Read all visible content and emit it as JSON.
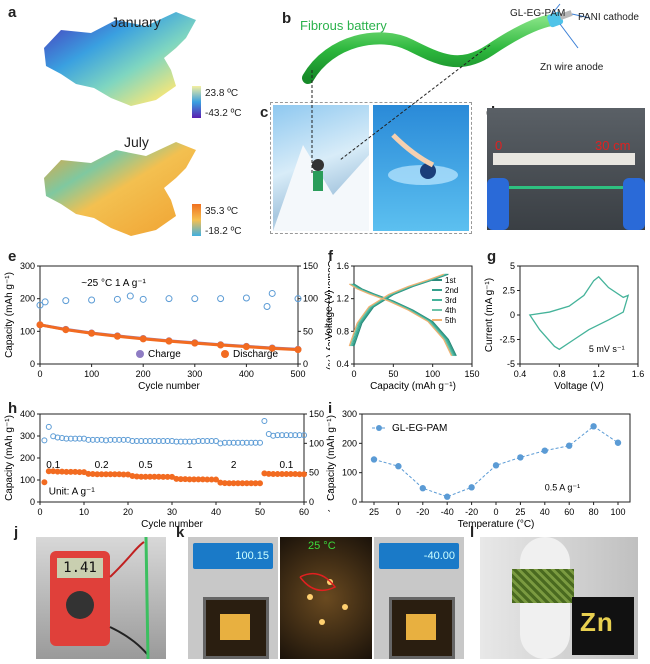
{
  "panel_labels": {
    "a": "a",
    "b": "b",
    "c": "c",
    "d": "d",
    "e": "e",
    "f": "f",
    "g": "g",
    "h": "h",
    "i": "i",
    "j": "j",
    "k": "k",
    "l": "l"
  },
  "panel_a": {
    "january": {
      "title": "January",
      "max_label": "23.8 ºC",
      "min_label": "-43.2 ºC"
    },
    "july": {
      "title": "July",
      "max_label": "35.3 ºC",
      "min_label": "-18.2 ºC"
    }
  },
  "panel_b": {
    "title": "Fibrous battery",
    "label_electrolyte": "GL-EG-PAM",
    "label_cathode": "PANI cathode",
    "label_anode": "Zn wire anode"
  },
  "panel_d": {
    "start_label": "0",
    "end_label": "30 cm"
  },
  "panel_j": {
    "meter_reading": "1.41"
  },
  "panel_k": {
    "left_display": "100.15",
    "center_label": "25 °C",
    "right_display": "-40.00"
  },
  "panel_l": {
    "text": "Zn"
  },
  "chart_data": [
    {
      "id": "e",
      "type": "scatter",
      "xlabel": "Cycle number",
      "ylabel": "Capacity (mAh g⁻¹)",
      "y2label": "Coulombic efficiency (%)",
      "xlim": [
        0,
        500
      ],
      "ylim": [
        0,
        300
      ],
      "y2lim": [
        0,
        150
      ],
      "xticks": [
        0,
        100,
        200,
        300,
        400,
        500
      ],
      "yticks": [
        0,
        100,
        200,
        300
      ],
      "y2ticks": [
        0,
        50,
        100,
        150
      ],
      "annotation": "~25 °C     1 A g⁻¹",
      "legend_location": "bottom-center",
      "series": [
        {
          "name": "Charge",
          "color": "#8e7cc3",
          "x": [
            0,
            50,
            100,
            150,
            200,
            250,
            300,
            350,
            400,
            450,
            500
          ],
          "y": [
            120,
            106,
            95,
            86,
            78,
            71,
            65,
            59,
            54,
            49,
            45
          ]
        },
        {
          "name": "Discharge",
          "color": "#f26b21",
          "x": [
            0,
            50,
            100,
            150,
            200,
            250,
            300,
            350,
            400,
            450,
            500
          ],
          "y": [
            120,
            105,
            94,
            85,
            77,
            70,
            64,
            58,
            53,
            48,
            44
          ]
        },
        {
          "name": "",
          "color": "#5b9bd5",
          "axis": "right",
          "x": [
            0,
            10,
            50,
            100,
            150,
            175,
            200,
            250,
            300,
            350,
            400,
            440,
            450,
            500
          ],
          "y": [
            90,
            95,
            97,
            98,
            99,
            104,
            99,
            100,
            100,
            100,
            101,
            88,
            108,
            100
          ]
        }
      ]
    },
    {
      "id": "f",
      "type": "line",
      "xlabel": "Capacity (mAh g⁻¹)",
      "ylabel": "Voltage (V)",
      "xlim": [
        0,
        150
      ],
      "ylim": [
        0.4,
        1.6
      ],
      "xticks": [
        0,
        50,
        100,
        150
      ],
      "yticks": [
        0.4,
        0.8,
        1.2,
        1.6
      ],
      "legend_location": "right",
      "series": [
        {
          "name": "1st",
          "color": "#2a8a7a"
        },
        {
          "name": "2nd",
          "color": "#34a08c"
        },
        {
          "name": "3rd",
          "color": "#45b39a"
        },
        {
          "name": "4th",
          "color": "#6cc3a8"
        },
        {
          "name": "5th",
          "color": "#f0b070"
        }
      ],
      "charge_curve": {
        "x": [
          0,
          10,
          25,
          50,
          75,
          100,
          120
        ],
        "y": [
          0.62,
          0.9,
          1.1,
          1.25,
          1.35,
          1.43,
          1.5
        ]
      },
      "discharge_curve": {
        "x": [
          0,
          10,
          25,
          50,
          75,
          100,
          120,
          130
        ],
        "y": [
          1.38,
          1.32,
          1.26,
          1.17,
          1.06,
          0.92,
          0.7,
          0.5
        ]
      }
    },
    {
      "id": "g",
      "type": "line",
      "xlabel": "Voltage (V)",
      "ylabel": "Current (mA g⁻¹)",
      "xlim": [
        0.4,
        1.6
      ],
      "ylim": [
        -5,
        5
      ],
      "xticks": [
        0.4,
        0.8,
        1.2,
        1.6
      ],
      "yticks": [
        -5,
        -2.5,
        0,
        2.5,
        5
      ],
      "annotation": "5 mV s⁻¹",
      "curve": {
        "x": [
          0.5,
          0.7,
          0.9,
          1.05,
          1.15,
          1.2,
          1.3,
          1.45,
          1.5,
          1.45,
          1.3,
          1.1,
          0.95,
          0.8,
          0.75,
          0.6,
          0.5
        ],
        "y": [
          0.0,
          0.3,
          0.9,
          2.0,
          3.5,
          3.9,
          2.8,
          1.8,
          2.0,
          0.3,
          -0.5,
          -1.5,
          -2.5,
          -3.5,
          -3.2,
          -1.5,
          0.0
        ]
      }
    },
    {
      "id": "h",
      "type": "scatter",
      "xlabel": "Cycle number",
      "ylabel": "Capacity (mAh g⁻¹)",
      "y2label": "Coulombic efficiency (%)",
      "xlim": [
        0,
        60
      ],
      "ylim": [
        0,
        400
      ],
      "y2lim": [
        0,
        150
      ],
      "xticks": [
        0,
        10,
        20,
        30,
        40,
        50,
        60
      ],
      "yticks": [
        0,
        100,
        200,
        300,
        400
      ],
      "y2ticks": [
        0,
        50,
        100,
        150
      ],
      "unit_label": "Unit: A g⁻¹",
      "rate_labels": [
        {
          "text": "0.1",
          "x": 3
        },
        {
          "text": "0.2",
          "x": 14
        },
        {
          "text": "0.5",
          "x": 24
        },
        {
          "text": "1",
          "x": 34
        },
        {
          "text": "2",
          "x": 44
        },
        {
          "text": "0.1",
          "x": 56
        }
      ],
      "series": [
        {
          "name": "Capacity",
          "color": "#f26b21",
          "x": [
            1,
            2,
            3,
            4,
            5,
            6,
            7,
            8,
            9,
            10,
            11,
            12,
            13,
            14,
            15,
            16,
            17,
            18,
            19,
            20,
            21,
            22,
            23,
            24,
            25,
            26,
            27,
            28,
            29,
            30,
            31,
            32,
            33,
            34,
            35,
            36,
            37,
            38,
            39,
            40,
            41,
            42,
            43,
            44,
            45,
            46,
            47,
            48,
            49,
            50,
            51,
            52,
            53,
            54,
            55,
            56,
            57,
            58,
            59,
            60
          ],
          "y": [
            90,
            140,
            140,
            138,
            138,
            137,
            137,
            137,
            136,
            136,
            128,
            127,
            126,
            126,
            126,
            126,
            126,
            126,
            125,
            125,
            118,
            116,
            115,
            115,
            115,
            115,
            115,
            114,
            114,
            114,
            105,
            104,
            104,
            103,
            103,
            103,
            103,
            102,
            102,
            102,
            88,
            86,
            85,
            85,
            85,
            85,
            85,
            85,
            85,
            85,
            130,
            128,
            127,
            127,
            127,
            127,
            127,
            127,
            126,
            126
          ]
        },
        {
          "name": "Coulombic efficiency",
          "color": "#5b9bd5",
          "axis": "right",
          "x": [
            1,
            2,
            3,
            4,
            5,
            6,
            7,
            8,
            9,
            10,
            11,
            12,
            13,
            14,
            15,
            16,
            17,
            18,
            19,
            20,
            21,
            22,
            23,
            24,
            25,
            26,
            27,
            28,
            29,
            30,
            31,
            32,
            33,
            34,
            35,
            36,
            37,
            38,
            39,
            40,
            41,
            42,
            43,
            44,
            45,
            46,
            47,
            48,
            49,
            50,
            51,
            52,
            53,
            54,
            55,
            56,
            57,
            58,
            59,
            60
          ],
          "y": [
            105,
            128,
            112,
            110,
            109,
            108,
            108,
            108,
            108,
            108,
            106,
            106,
            106,
            106,
            105,
            106,
            106,
            106,
            106,
            106,
            104,
            104,
            104,
            104,
            104,
            104,
            104,
            104,
            104,
            104,
            103,
            103,
            103,
            103,
            103,
            104,
            104,
            104,
            104,
            104,
            100,
            101,
            101,
            101,
            101,
            101,
            101,
            101,
            101,
            101,
            138,
            116,
            113,
            114,
            114,
            114,
            114,
            114,
            114,
            114
          ]
        }
      ]
    },
    {
      "id": "i",
      "type": "line",
      "xlabel": "Temperature (°C)",
      "ylabel": "Capacity (mAh g⁻¹)",
      "ylim": [
        0,
        300
      ],
      "yticks": [
        0,
        100,
        200,
        300
      ],
      "categories": [
        "25",
        "0",
        "-20",
        "-40",
        "-20",
        "0",
        "25",
        "40",
        "60",
        "80",
        "100"
      ],
      "legend_location": "top-left",
      "annotation": "0.5 A g⁻¹",
      "series": [
        {
          "name": "GL-EG-PAM",
          "color": "#5b9bd5",
          "values": [
            145,
            122,
            47,
            18,
            50,
            125,
            152,
            175,
            192,
            258,
            202
          ]
        }
      ]
    }
  ]
}
